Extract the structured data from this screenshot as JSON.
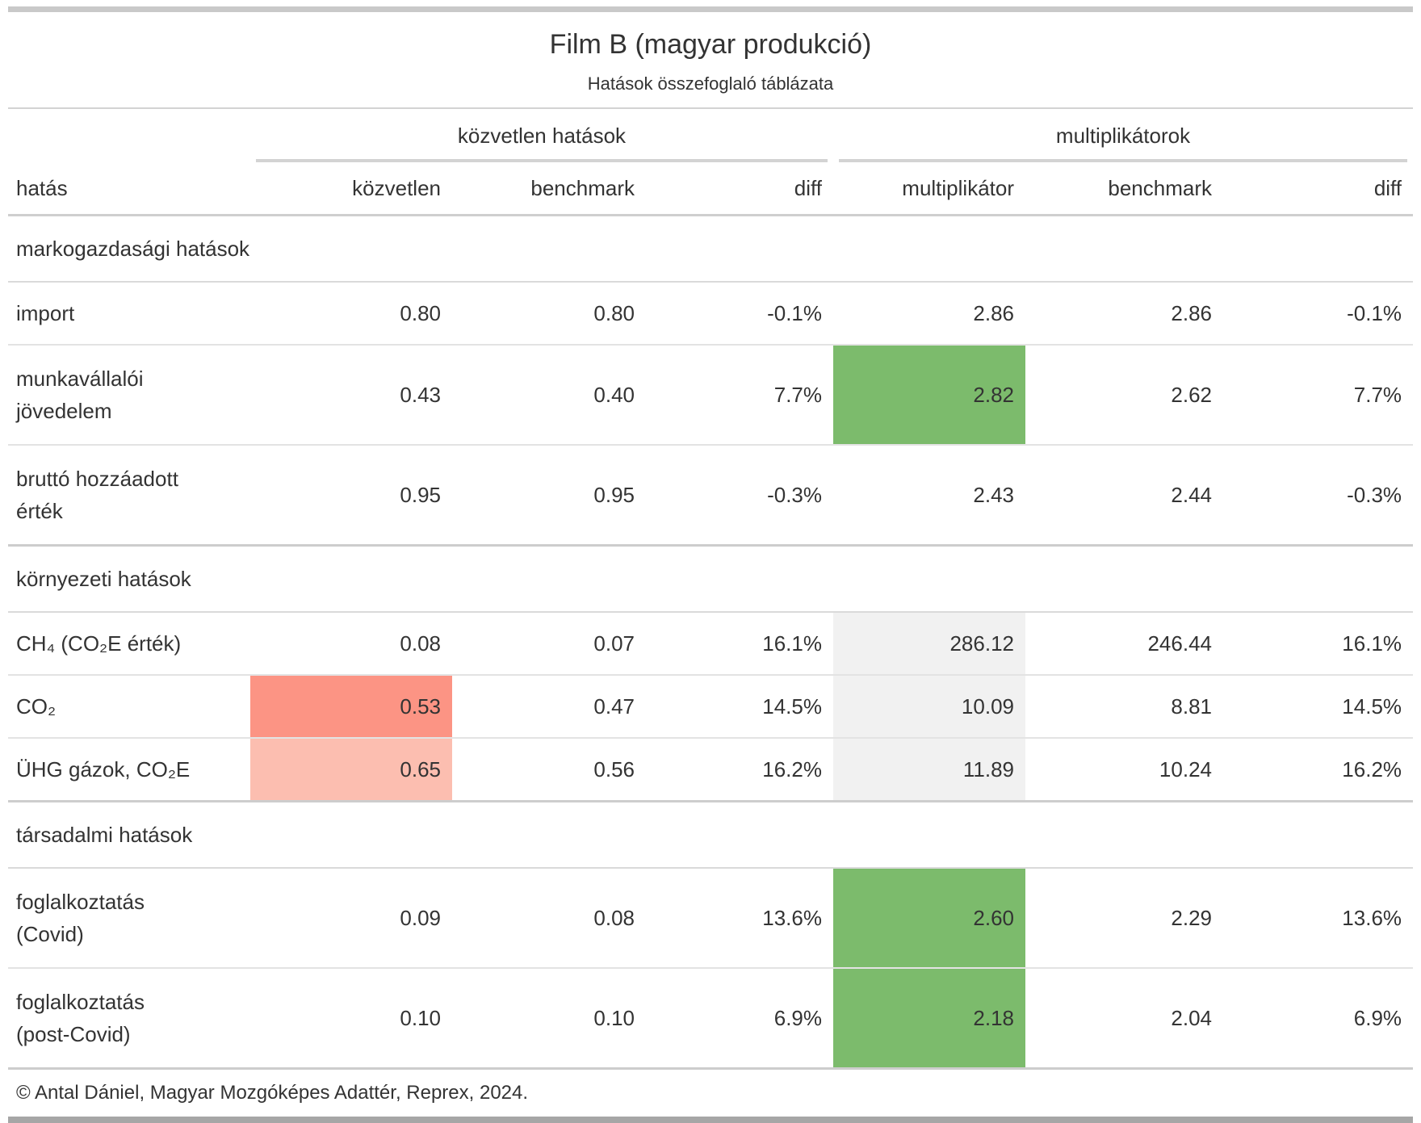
{
  "chart_data": {
    "type": "table",
    "title": "Film B (magyar produkció)",
    "subtitle": "Hatások összefoglaló táblázata",
    "spanners": [
      {
        "label": "közvetlen hatások",
        "span_columns": [
          "közvetlen",
          "benchmark",
          "diff"
        ]
      },
      {
        "label": "multiplikátorok",
        "span_columns": [
          "multiplikátor",
          "benchmark",
          "diff"
        ]
      }
    ],
    "columns": [
      "hatás",
      "közvetlen",
      "benchmark",
      "diff",
      "multiplikátor",
      "benchmark",
      "diff"
    ],
    "groups": [
      {
        "label": "markogazdasági hatások",
        "rows": [
          {
            "label": "import",
            "values": [
              "0.80",
              "0.80",
              "-0.1%",
              "2.86",
              "2.86",
              "-0.1%"
            ],
            "highlights": [
              null,
              null,
              null,
              null,
              null,
              null
            ]
          },
          {
            "label": "munkavállalói\njövedelem",
            "values": [
              "0.43",
              "0.40",
              "7.7%",
              "2.82",
              "2.62",
              "7.7%"
            ],
            "highlights": [
              null,
              null,
              null,
              "green",
              null,
              null
            ]
          },
          {
            "label": "bruttó hozzáadott\nérték",
            "values": [
              "0.95",
              "0.95",
              "-0.3%",
              "2.43",
              "2.44",
              "-0.3%"
            ],
            "highlights": [
              null,
              null,
              null,
              null,
              null,
              null
            ]
          }
        ]
      },
      {
        "label": "környezeti hatások",
        "rows": [
          {
            "label": "CH₄ (CO₂E érték)",
            "values": [
              "0.08",
              "0.07",
              "16.1%",
              "286.12",
              "246.44",
              "16.1%"
            ],
            "highlights": [
              null,
              null,
              null,
              "gray",
              null,
              null
            ]
          },
          {
            "label": "CO₂",
            "values": [
              "0.53",
              "0.47",
              "14.5%",
              "10.09",
              "8.81",
              "14.5%"
            ],
            "highlights": [
              "red",
              null,
              null,
              "gray",
              null,
              null
            ]
          },
          {
            "label": "ÜHG gázok, CO₂E",
            "values": [
              "0.65",
              "0.56",
              "16.2%",
              "11.89",
              "10.24",
              "16.2%"
            ],
            "highlights": [
              "red_light",
              null,
              null,
              "gray",
              null,
              null
            ]
          }
        ]
      },
      {
        "label": "társadalmi hatások",
        "rows": [
          {
            "label": "foglalkoztatás\n(Covid)",
            "values": [
              "0.09",
              "0.08",
              "13.6%",
              "2.60",
              "2.29",
              "13.6%"
            ],
            "highlights": [
              null,
              null,
              null,
              "green",
              null,
              null
            ]
          },
          {
            "label": "foglalkoztatás\n(post-Covid)",
            "values": [
              "0.10",
              "0.10",
              "6.9%",
              "2.18",
              "2.04",
              "6.9%"
            ],
            "highlights": [
              null,
              null,
              null,
              "green",
              null,
              null
            ]
          }
        ]
      }
    ],
    "footer": "© Antal Dániel, Magyar Mozgóképes Adattér, Reprex, 2024.",
    "highlight_colors": {
      "green": "#7cbb6c",
      "red": "#fc9484",
      "red_light": "#fcbeb0",
      "gray": "#f1f1f1"
    }
  }
}
